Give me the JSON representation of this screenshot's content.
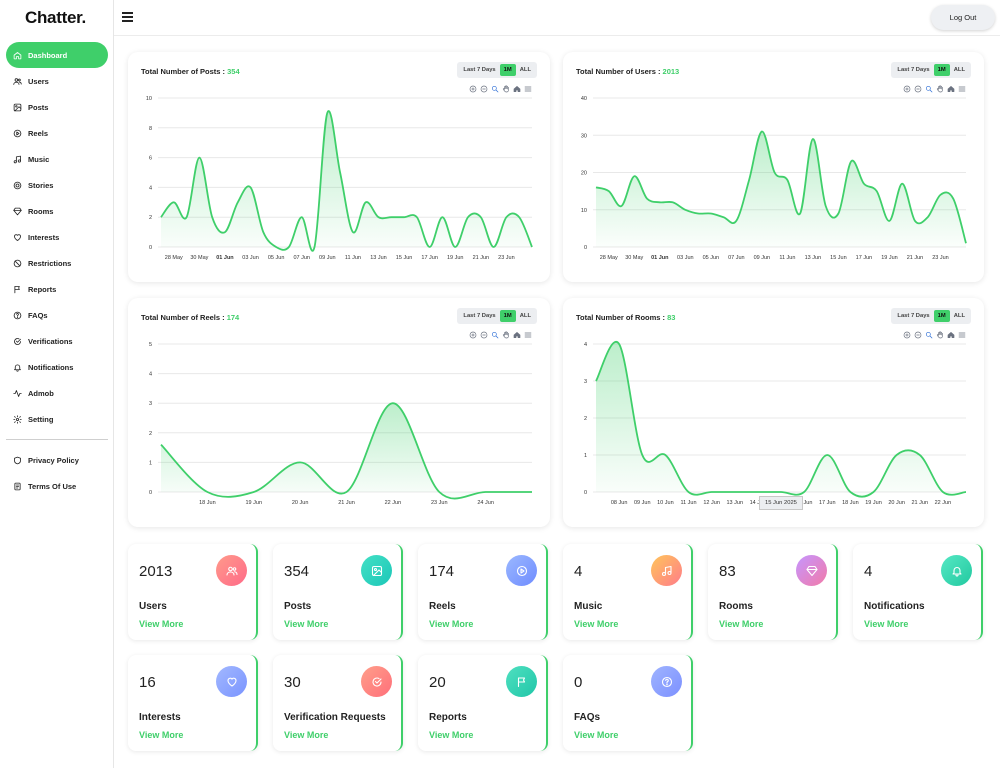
{
  "app": {
    "name": "Chatter."
  },
  "topbar": {
    "logout_label": "Log Out"
  },
  "sidebar": {
    "items": [
      {
        "label": "Dashboard",
        "icon": "home-icon",
        "active": true
      },
      {
        "label": "Users",
        "icon": "users-icon"
      },
      {
        "label": "Posts",
        "icon": "image-icon"
      },
      {
        "label": "Reels",
        "icon": "play-icon"
      },
      {
        "label": "Music",
        "icon": "music-icon"
      },
      {
        "label": "Stories",
        "icon": "stories-icon"
      },
      {
        "label": "Rooms",
        "icon": "rooms-icon"
      },
      {
        "label": "Interests",
        "icon": "heart-icon"
      },
      {
        "label": "Restrictions",
        "icon": "ban-icon"
      },
      {
        "label": "Reports",
        "icon": "flag-icon"
      },
      {
        "label": "FAQs",
        "icon": "question-icon"
      },
      {
        "label": "Verifications",
        "icon": "verified-icon"
      },
      {
        "label": "Notifications",
        "icon": "bell-icon"
      },
      {
        "label": "Admob",
        "icon": "activity-icon"
      },
      {
        "label": "Setting",
        "icon": "gear-icon"
      }
    ],
    "footer_items": [
      {
        "label": "Privacy Policy",
        "icon": "shield-icon"
      },
      {
        "label": "Terms Of Use",
        "icon": "document-icon"
      }
    ]
  },
  "range_buttons": [
    "Last 7 Days",
    "1M",
    "ALL"
  ],
  "selected_range": "1M",
  "colors": {
    "accent": "#3fcf6a"
  },
  "chart_data": [
    {
      "type": "area",
      "title": "Total Number of Posts :",
      "total": "354",
      "ylim": [
        0,
        10
      ],
      "yticks": [
        0,
        2,
        4,
        6,
        8,
        10
      ],
      "xticks": [
        "28 May",
        "30 May",
        "01 Jun",
        "03 Jun",
        "05 Jun",
        "07 Jun",
        "09 Jun",
        "11 Jun",
        "13 Jun",
        "15 Jun",
        "17 Jun",
        "19 Jun",
        "21 Jun",
        "23 Jun"
      ],
      "bold_xtick": "01 Jun",
      "x": [
        "27 May",
        "28 May",
        "29 May",
        "30 May",
        "31 May",
        "01 Jun",
        "02 Jun",
        "03 Jun",
        "04 Jun",
        "05 Jun",
        "06 Jun",
        "07 Jun",
        "08 Jun",
        "09 Jun",
        "10 Jun",
        "11 Jun",
        "12 Jun",
        "13 Jun",
        "14 Jun",
        "15 Jun",
        "16 Jun",
        "17 Jun",
        "18 Jun",
        "19 Jun",
        "20 Jun",
        "21 Jun",
        "22 Jun",
        "23 Jun",
        "24 Jun",
        "25 Jun"
      ],
      "values": [
        2,
        3,
        2,
        6,
        2,
        1,
        3,
        4,
        1,
        0,
        0,
        2,
        0,
        9,
        5,
        1,
        3,
        2,
        2,
        2,
        2,
        0,
        2,
        0,
        2,
        2,
        0,
        2,
        2,
        0
      ],
      "grid": true
    },
    {
      "type": "area",
      "title": "Total Number of Users :",
      "total": "2013",
      "ylim": [
        0,
        40
      ],
      "yticks": [
        0,
        10,
        20,
        30,
        40
      ],
      "xticks": [
        "28 May",
        "30 May",
        "01 Jun",
        "03 Jun",
        "05 Jun",
        "07 Jun",
        "09 Jun",
        "11 Jun",
        "13 Jun",
        "15 Jun",
        "17 Jun",
        "19 Jun",
        "21 Jun",
        "23 Jun"
      ],
      "bold_xtick": "01 Jun",
      "x": [
        "27 May",
        "28 May",
        "29 May",
        "30 May",
        "31 May",
        "01 Jun",
        "02 Jun",
        "03 Jun",
        "04 Jun",
        "05 Jun",
        "06 Jun",
        "07 Jun",
        "08 Jun",
        "09 Jun",
        "10 Jun",
        "11 Jun",
        "12 Jun",
        "13 Jun",
        "14 Jun",
        "15 Jun",
        "16 Jun",
        "17 Jun",
        "18 Jun",
        "19 Jun",
        "20 Jun",
        "21 Jun",
        "22 Jun",
        "23 Jun",
        "24 Jun",
        "25 Jun"
      ],
      "values": [
        16,
        15,
        11,
        19,
        13,
        12,
        12,
        10,
        9,
        9,
        8,
        7,
        18,
        31,
        20,
        18,
        9,
        29,
        11,
        9,
        23,
        17,
        15,
        7,
        17,
        7,
        8,
        14,
        13,
        1
      ],
      "grid": true
    },
    {
      "type": "area",
      "title": "Total Number of Reels :",
      "total": "174",
      "ylim": [
        0,
        5
      ],
      "yticks": [
        0,
        1,
        2,
        3,
        4,
        5
      ],
      "xticks": [
        "18 Jun",
        "19 Jun",
        "20 Jun",
        "21 Jun",
        "22 Jun",
        "23 Jun",
        "24 Jun"
      ],
      "bold_xtick": "",
      "x": [
        "17 Jun",
        "18 Jun",
        "19 Jun",
        "20 Jun",
        "21 Jun",
        "22 Jun",
        "23 Jun",
        "24 Jun",
        "25 Jun"
      ],
      "values": [
        1.6,
        0,
        0,
        1,
        0,
        3,
        0,
        0,
        0
      ],
      "grid": true
    },
    {
      "type": "area",
      "title": "Total Number of Rooms :",
      "total": "83",
      "ylim": [
        0,
        4
      ],
      "yticks": [
        0,
        1,
        2,
        3,
        4
      ],
      "xticks": [
        "08 Jun",
        "09 Jun",
        "10 Jun",
        "11 Jun",
        "12 Jun",
        "13 Jun",
        "14 Jun",
        "15 Jun",
        "16 Jun",
        "17 Jun",
        "18 Jun",
        "19 Jun",
        "20 Jun",
        "21 Jun",
        "22 Jun"
      ],
      "bold_xtick": "",
      "x": [
        "07 Jun",
        "08 Jun",
        "09 Jun",
        "10 Jun",
        "11 Jun",
        "12 Jun",
        "13 Jun",
        "14 Jun",
        "15 Jun",
        "16 Jun",
        "17 Jun",
        "18 Jun",
        "19 Jun",
        "20 Jun",
        "21 Jun",
        "22 Jun",
        "23 Jun"
      ],
      "values": [
        3,
        4,
        1,
        1,
        0,
        0,
        0,
        0,
        0,
        0,
        1,
        0,
        0,
        1,
        1,
        0,
        0
      ],
      "tooltip": "15 Jun 2025",
      "grid": true
    }
  ],
  "stats": [
    {
      "value": "2013",
      "label": "Users",
      "link": "View More",
      "icon": "users-icon",
      "gradient": [
        "#ff9a8b",
        "#ff6a88"
      ]
    },
    {
      "value": "354",
      "label": "Posts",
      "link": "View More",
      "icon": "image-icon",
      "gradient": [
        "#43e0c5",
        "#1cc7b8"
      ]
    },
    {
      "value": "174",
      "label": "Reels",
      "link": "View More",
      "icon": "play-icon",
      "gradient": [
        "#9bb8ff",
        "#6f8cff"
      ]
    },
    {
      "value": "4",
      "label": "Music",
      "link": "View More",
      "icon": "music-icon",
      "gradient": [
        "#ffc55a",
        "#ff7c8a"
      ]
    },
    {
      "value": "83",
      "label": "Rooms",
      "link": "View More",
      "icon": "rooms-icon",
      "gradient": [
        "#c596ff",
        "#f27aa8"
      ]
    },
    {
      "value": "4",
      "label": "Notifications",
      "link": "View More",
      "icon": "bell-icon",
      "gradient": [
        "#55e8c4",
        "#22c9a0"
      ]
    },
    {
      "value": "16",
      "label": "Interests",
      "link": "View More",
      "icon": "heart-icon",
      "gradient": [
        "#a2b8ff",
        "#7a94ff"
      ]
    },
    {
      "value": "30",
      "label": "Verification Requests",
      "link": "View More",
      "icon": "verified-icon",
      "gradient": [
        "#ff9f8a",
        "#ff6f7a"
      ]
    },
    {
      "value": "20",
      "label": "Reports",
      "link": "View More",
      "icon": "flag-icon",
      "gradient": [
        "#4fe0c0",
        "#20c6a8"
      ]
    },
    {
      "value": "0",
      "label": "FAQs",
      "link": "View More",
      "icon": "question-icon",
      "gradient": [
        "#9fb4ff",
        "#7c90ff"
      ]
    }
  ]
}
